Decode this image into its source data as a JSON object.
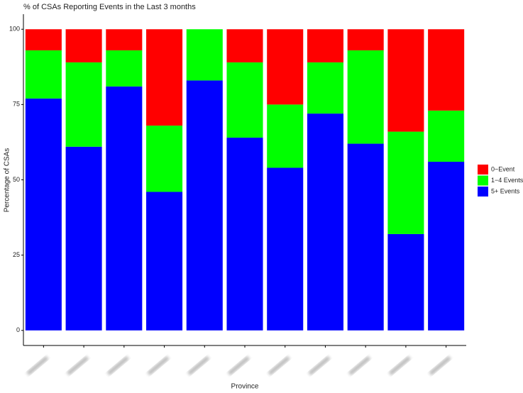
{
  "chart_data": {
    "type": "stacked_bar",
    "title": "% of CSAs Reporting Events in the Last 3 months",
    "x_label": "Province",
    "y_label": "Percentage of CSAs",
    "categories": [
      null,
      null,
      null,
      null,
      null,
      null,
      null,
      null,
      null,
      null,
      null
    ],
    "series": [
      {
        "name": "0−Event",
        "color": "#ff0000",
        "values": [
          7,
          11,
          7,
          32,
          0,
          11,
          25,
          11,
          7,
          34,
          27
        ]
      },
      {
        "name": "1−4 Events",
        "color": "#00ff00",
        "values": [
          16,
          28,
          12,
          22,
          17,
          25,
          21,
          17,
          31,
          34,
          17
        ]
      },
      {
        "name": "5+ Events",
        "color": "#0000ff",
        "values": [
          77,
          61,
          81,
          46,
          83,
          64,
          54,
          72,
          62,
          32,
          56
        ]
      }
    ],
    "ylim": [
      -5,
      105
    ],
    "yticks": [
      0,
      25,
      50,
      75,
      100
    ],
    "grid": false,
    "legend": "right"
  }
}
